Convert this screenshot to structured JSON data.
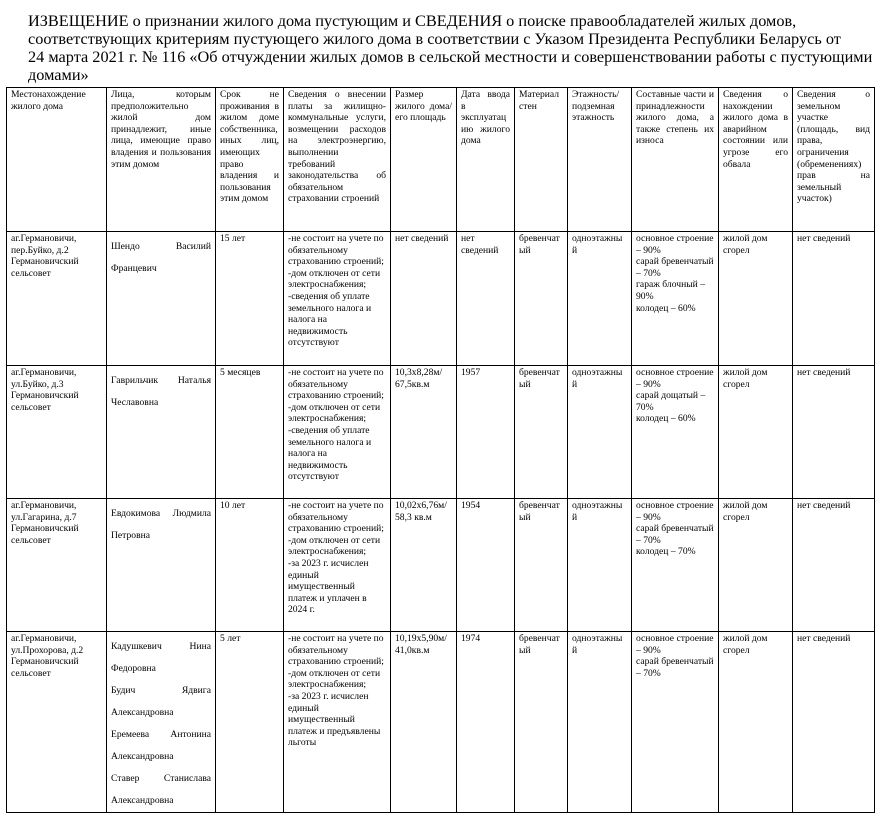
{
  "document": {
    "title_lines": [
      "ИЗВЕЩЕНИЕ о признании жилого дома пустующим и СВЕДЕНИЯ о поиске правообладателей жилых домов,",
      "соответствующих критериям пустующего жилого дома в соответствии с Указом Президента Республики Беларусь от",
      "24 марта 2021 г. № 116 «Об отчуждении жилых домов в сельской местности и совершенствовании работы с пустующими",
      "домами»"
    ]
  },
  "table": {
    "headers": [
      "Местонахождение жилого дома",
      "Лица, которым предположительно жилой дом принадлежит, иные лица, имеющие право владения и пользования этим домом",
      "Срок не проживания в жилом доме собственника, иных лиц, имеющих право владения и пользования этим домом",
      "Сведения о внесении платы за жилищно-коммунальные услуги, возмещении расходов на электроэнергию, выполнении требований законодательства об обязательном страховании строений",
      "Размер жилого дома/ его площадь",
      "Дата ввода в эксплуатацию жилого дома",
      "Материал стен",
      "Этажность/ подземная этажность",
      "Составные части и принадлежности жилого дома, а также степень их износа",
      "Сведения о нахождении жилого дома в аварийном состоянии или угрозе его обвала",
      "Сведения о земельном участке (площадь, вид права, ограничения (обременениях) прав на земельный участок)"
    ],
    "rows": [
      {
        "location": "аг.Германовичи, пер.Буйко, д.2 Германовичский сельсовет",
        "persons": [
          "Шендо Василий Францевич"
        ],
        "vacancy": "15 лет",
        "payments": [
          "-не состоит на учете по обязательному страхованию строений;",
          "-дом отключен от сети электроснабжения;",
          "-сведения об уплате земельного налога и налога на недвижимость отсутствуют"
        ],
        "size": "нет сведений",
        "date": "нет сведений",
        "material": "бревенчатый",
        "floors": "одноэтажный",
        "parts": [
          "основное строение – 90%",
          "сарай бревенчатый – 70%",
          "гараж блочный – 90%",
          "колодец – 60%"
        ],
        "emergency": "жилой дом сгорел",
        "land": "нет сведений"
      },
      {
        "location": "аг.Германовичи, ул.Буйко, д.3 Германовичский сельсовет",
        "persons": [
          "Гаврильчик Наталья Чеславовна"
        ],
        "vacancy": "5 месяцев",
        "payments": [
          "-не состоит на учете по обязательному страхованию строений;",
          "-дом отключен от сети электроснабжения;",
          "-сведения об уплате земельного налога и налога на недвижимость отсутствуют"
        ],
        "size": "10,3х8,28м/ 67,5кв.м",
        "date": "1957",
        "material": "бревенчатый",
        "floors": "одноэтажный",
        "parts": [
          "основное строение – 90%",
          "сарай дощатый – 70%",
          "колодец – 60%"
        ],
        "emergency": "жилой дом сгорел",
        "land": "нет сведений"
      },
      {
        "location": "аг.Германовичи, ул.Гагарина, д.7 Германовичский сельсовет",
        "persons": [
          "Евдокимова Людмила Петровна"
        ],
        "vacancy": "10 лет",
        "payments": [
          "-не состоит на учете по обязательному страхованию строений;",
          "-дом отключен от сети электроснабжения;",
          "-за 2023 г. исчислен единый имущественный платеж и уплачен в 2024 г."
        ],
        "size": "10,02х6,76м/ 58,3 кв.м",
        "date": "1954",
        "material": "бревенчатый",
        "floors": "одноэтажный",
        "parts": [
          "основное строение – 90%",
          "сарай бревенчатый – 70%",
          "колодец – 70%"
        ],
        "emergency": "жилой дом сгорел",
        "land": "нет сведений"
      },
      {
        "location": "аг.Германовичи, ул.Прохорова, д.2 Германовичский сельсовет",
        "persons": [
          "Кадушкевич Нина Федоровна",
          "Будич Ядвига Александровна",
          "Еремеева Антонина Александровна",
          "Ставер Станислава Александровна"
        ],
        "vacancy": "5 лет",
        "payments": [
          "-не состоит на учете по обязательному страхованию строений;",
          "-дом отключен от сети электроснабжения;",
          "-за 2023 г. исчислен единый имущественный платеж и предъявлены льготы"
        ],
        "size": "10,19х5,90м/ 41,0кв.м",
        "date": "1974",
        "material": "бревенчатый",
        "floors": "одноэтажный",
        "parts": [
          "основное строение – 90%",
          "сарай бревенчатый – 70%"
        ],
        "emergency": "жилой дом сгорел",
        "land": "нет сведений"
      }
    ]
  }
}
